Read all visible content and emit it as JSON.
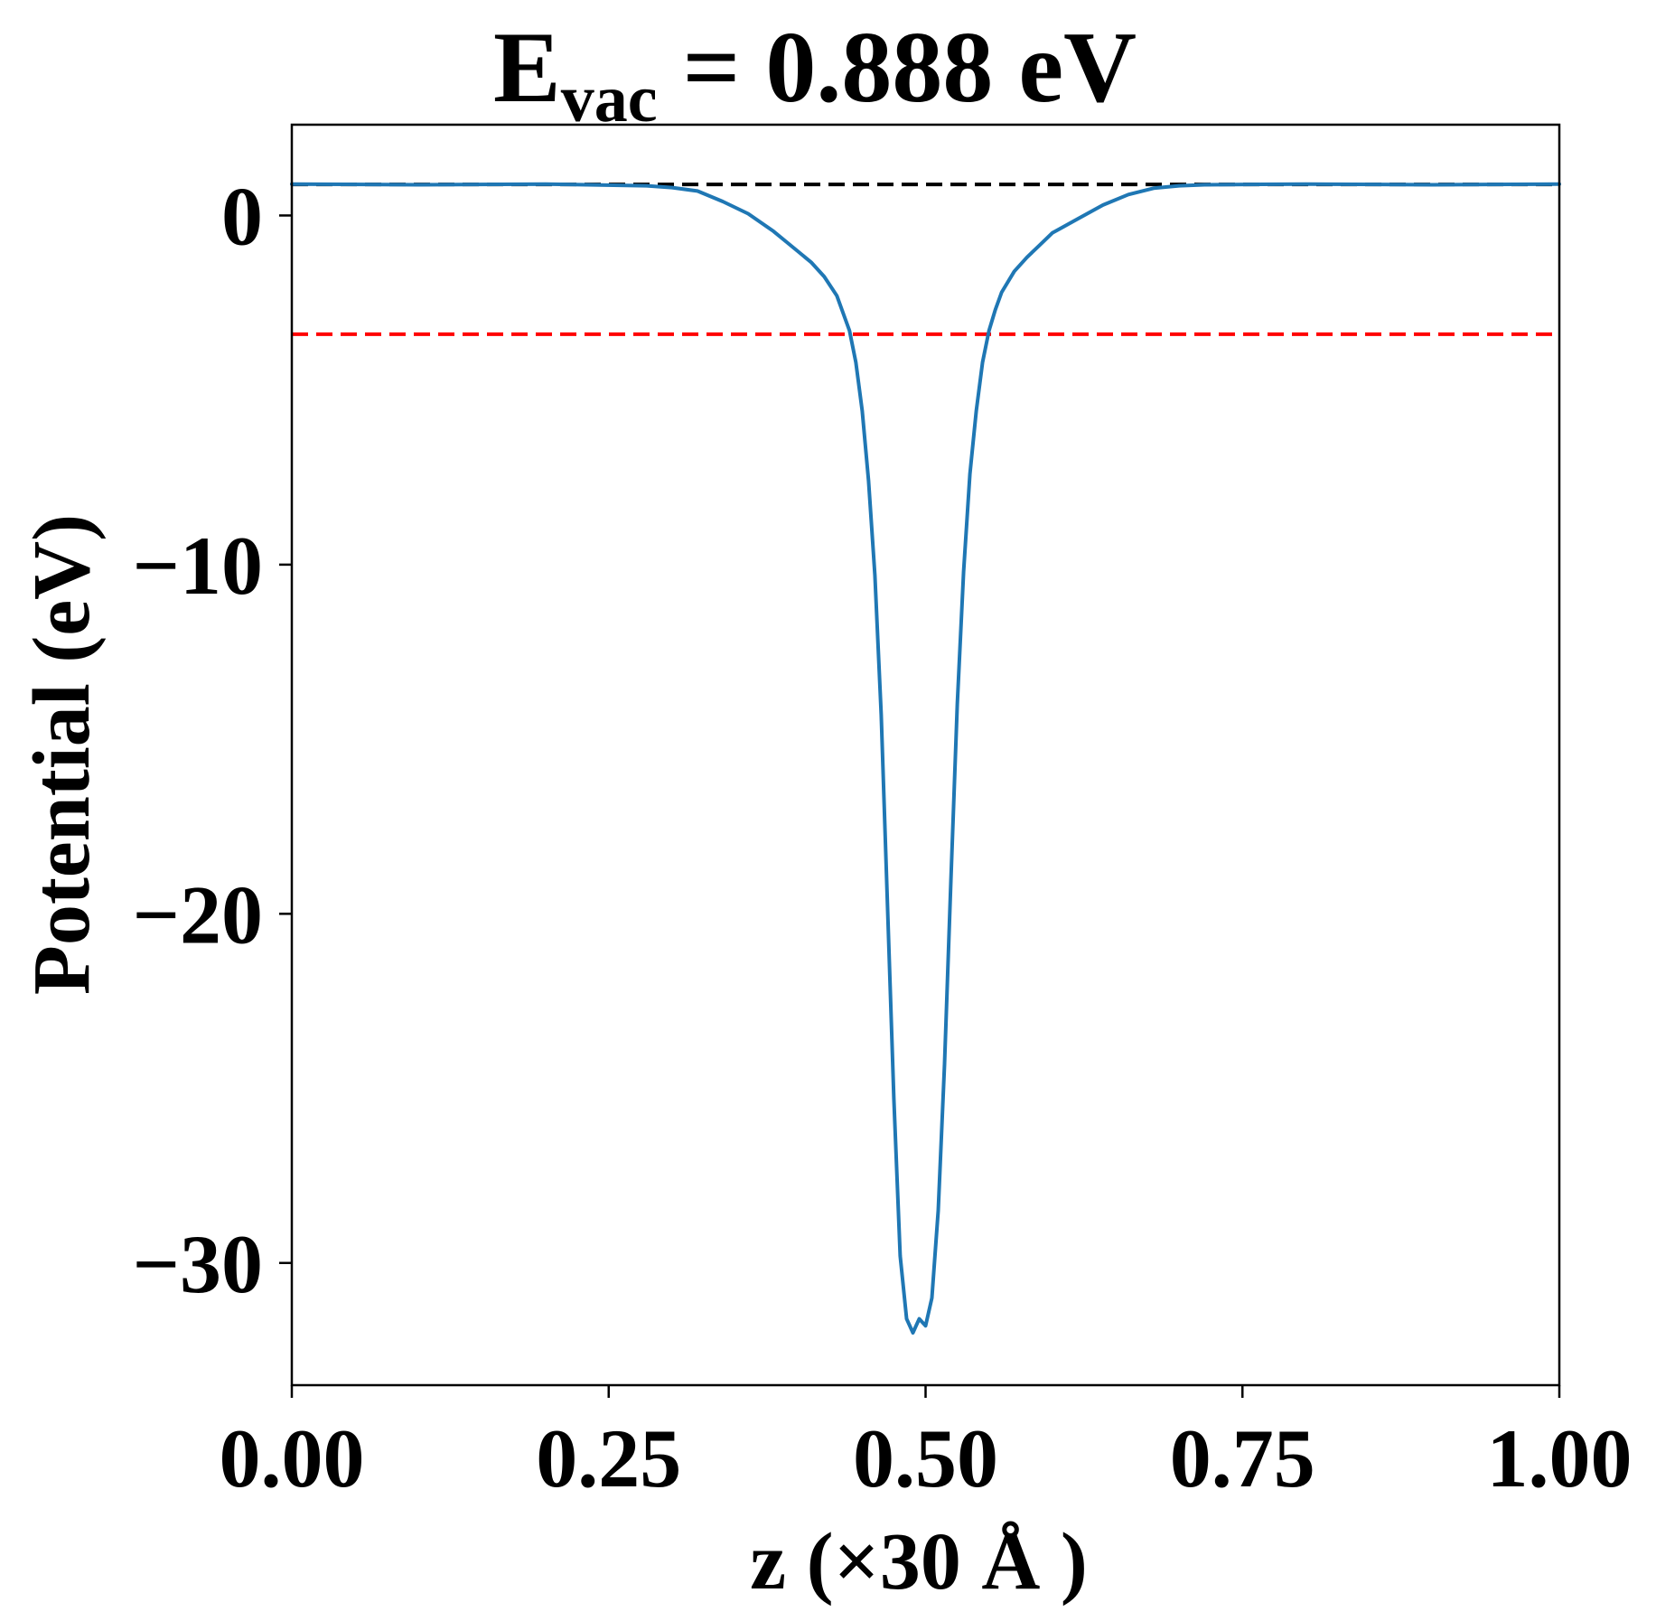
{
  "chart_data": {
    "type": "line",
    "title": {
      "prefix": "E",
      "subscript": "vac",
      "suffix": " = 0.888 eV"
    },
    "xlabel": "z (×30 Å )",
    "ylabel": "Potential (eV)",
    "xlim": [
      0.0,
      1.0
    ],
    "ylim": [
      -33.5,
      2.6
    ],
    "x_ticks": [
      0.0,
      0.25,
      0.5,
      0.75,
      1.0
    ],
    "x_tick_labels": [
      "0.00",
      "0.25",
      "0.50",
      "0.75",
      "1.00"
    ],
    "y_ticks": [
      0,
      -10,
      -20,
      -30
    ],
    "y_tick_labels": [
      "0",
      "−10",
      "−20",
      "−30"
    ],
    "grid": false,
    "series": [
      {
        "color": "#1f77b4",
        "style": "solid",
        "x": [
          0.0,
          0.1,
          0.2,
          0.28,
          0.3,
          0.32,
          0.34,
          0.36,
          0.38,
          0.39,
          0.4,
          0.41,
          0.42,
          0.43,
          0.44,
          0.445,
          0.45,
          0.455,
          0.46,
          0.465,
          0.47,
          0.475,
          0.48,
          0.485,
          0.49,
          0.495,
          0.5,
          0.505,
          0.51,
          0.515,
          0.52,
          0.525,
          0.53,
          0.535,
          0.54,
          0.545,
          0.55,
          0.555,
          0.56,
          0.57,
          0.58,
          0.59,
          0.6,
          0.62,
          0.64,
          0.66,
          0.68,
          0.7,
          0.72,
          0.8,
          0.9,
          1.0
        ],
        "y": [
          0.9,
          0.88,
          0.9,
          0.85,
          0.8,
          0.7,
          0.4,
          0.05,
          -0.45,
          -0.75,
          -1.05,
          -1.35,
          -1.75,
          -2.3,
          -3.3,
          -4.2,
          -5.6,
          -7.6,
          -10.3,
          -14.3,
          -19.8,
          -25.3,
          -29.8,
          -31.6,
          -32.0,
          -31.6,
          -31.8,
          -31.0,
          -28.5,
          -24.3,
          -19.0,
          -14.0,
          -10.2,
          -7.4,
          -5.6,
          -4.2,
          -3.3,
          -2.7,
          -2.2,
          -1.6,
          -1.2,
          -0.85,
          -0.5,
          -0.1,
          0.3,
          0.6,
          0.78,
          0.85,
          0.88,
          0.9,
          0.88,
          0.9
        ]
      }
    ],
    "reference_lines": [
      {
        "y": 0.888,
        "color": "#000000",
        "style": "dashed"
      },
      {
        "y": -3.4,
        "color": "#ff0000",
        "style": "dashed"
      }
    ]
  }
}
